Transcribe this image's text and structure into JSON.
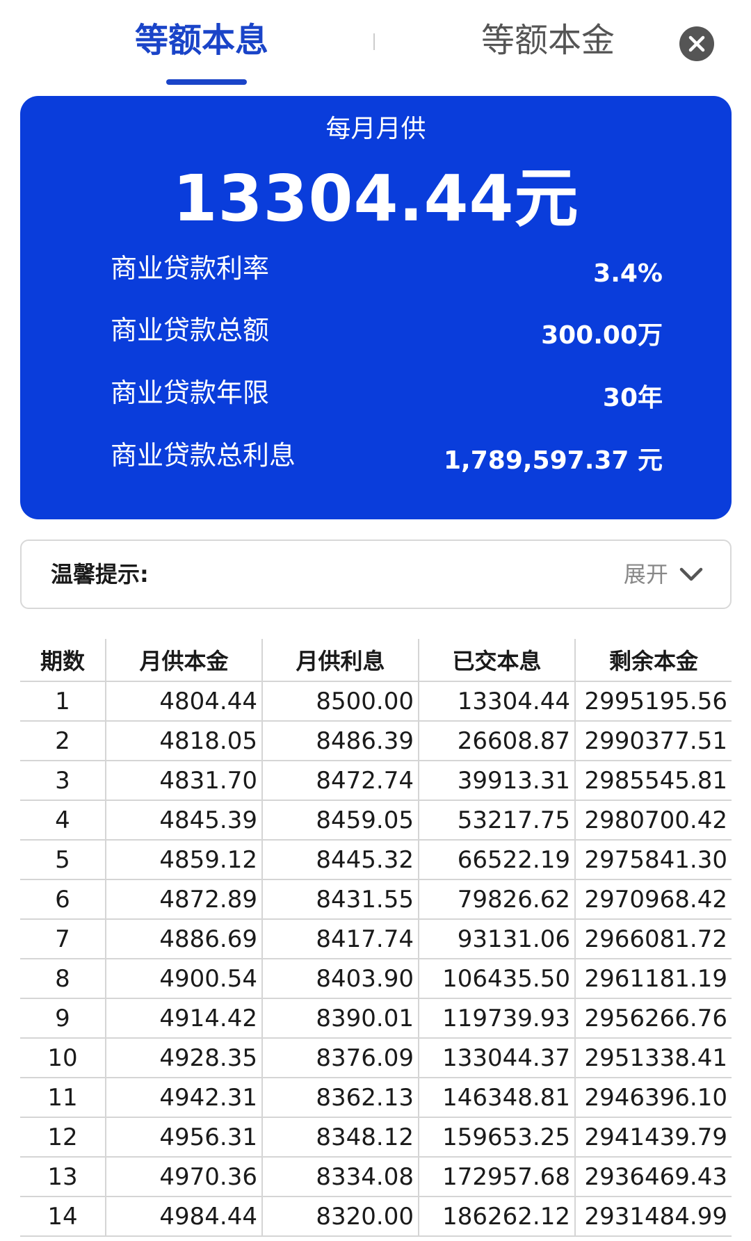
{
  "tabs": {
    "active_label": "等额本息",
    "inactive_label": "等额本金"
  },
  "icons": {
    "close": "close-icon",
    "expand": "chevron-down-icon"
  },
  "colors": {
    "accent": "#1a44c8",
    "card_background": "#0a3ddb"
  },
  "summary": {
    "label": "每月月供",
    "amount": "13304.44元",
    "details": [
      {
        "label": "商业贷款利率",
        "value": "3.4%"
      },
      {
        "label": "商业贷款总额",
        "value": "300.00万"
      },
      {
        "label": "商业贷款年限",
        "value": "30年"
      },
      {
        "label": "商业贷款总利息",
        "value": "1,789,597.37 元"
      }
    ]
  },
  "tips": {
    "title": "温馨提示:",
    "expand_label": "展开"
  },
  "table": {
    "headers": [
      "期数",
      "月供本金",
      "月供利息",
      "已交本息",
      "剩余本金"
    ],
    "rows": [
      [
        "1",
        "4804.44",
        "8500.00",
        "13304.44",
        "2995195.56"
      ],
      [
        "2",
        "4818.05",
        "8486.39",
        "26608.87",
        "2990377.51"
      ],
      [
        "3",
        "4831.70",
        "8472.74",
        "39913.31",
        "2985545.81"
      ],
      [
        "4",
        "4845.39",
        "8459.05",
        "53217.75",
        "2980700.42"
      ],
      [
        "5",
        "4859.12",
        "8445.32",
        "66522.19",
        "2975841.30"
      ],
      [
        "6",
        "4872.89",
        "8431.55",
        "79826.62",
        "2970968.42"
      ],
      [
        "7",
        "4886.69",
        "8417.74",
        "93131.06",
        "2966081.72"
      ],
      [
        "8",
        "4900.54",
        "8403.90",
        "106435.50",
        "2961181.19"
      ],
      [
        "9",
        "4914.42",
        "8390.01",
        "119739.93",
        "2956266.76"
      ],
      [
        "10",
        "4928.35",
        "8376.09",
        "133044.37",
        "2951338.41"
      ],
      [
        "11",
        "4942.31",
        "8362.13",
        "146348.81",
        "2946396.10"
      ],
      [
        "12",
        "4956.31",
        "8348.12",
        "159653.25",
        "2941439.79"
      ],
      [
        "13",
        "4970.36",
        "8334.08",
        "172957.68",
        "2936469.43"
      ],
      [
        "14",
        "4984.44",
        "8320.00",
        "186262.12",
        "2931484.99"
      ]
    ]
  }
}
